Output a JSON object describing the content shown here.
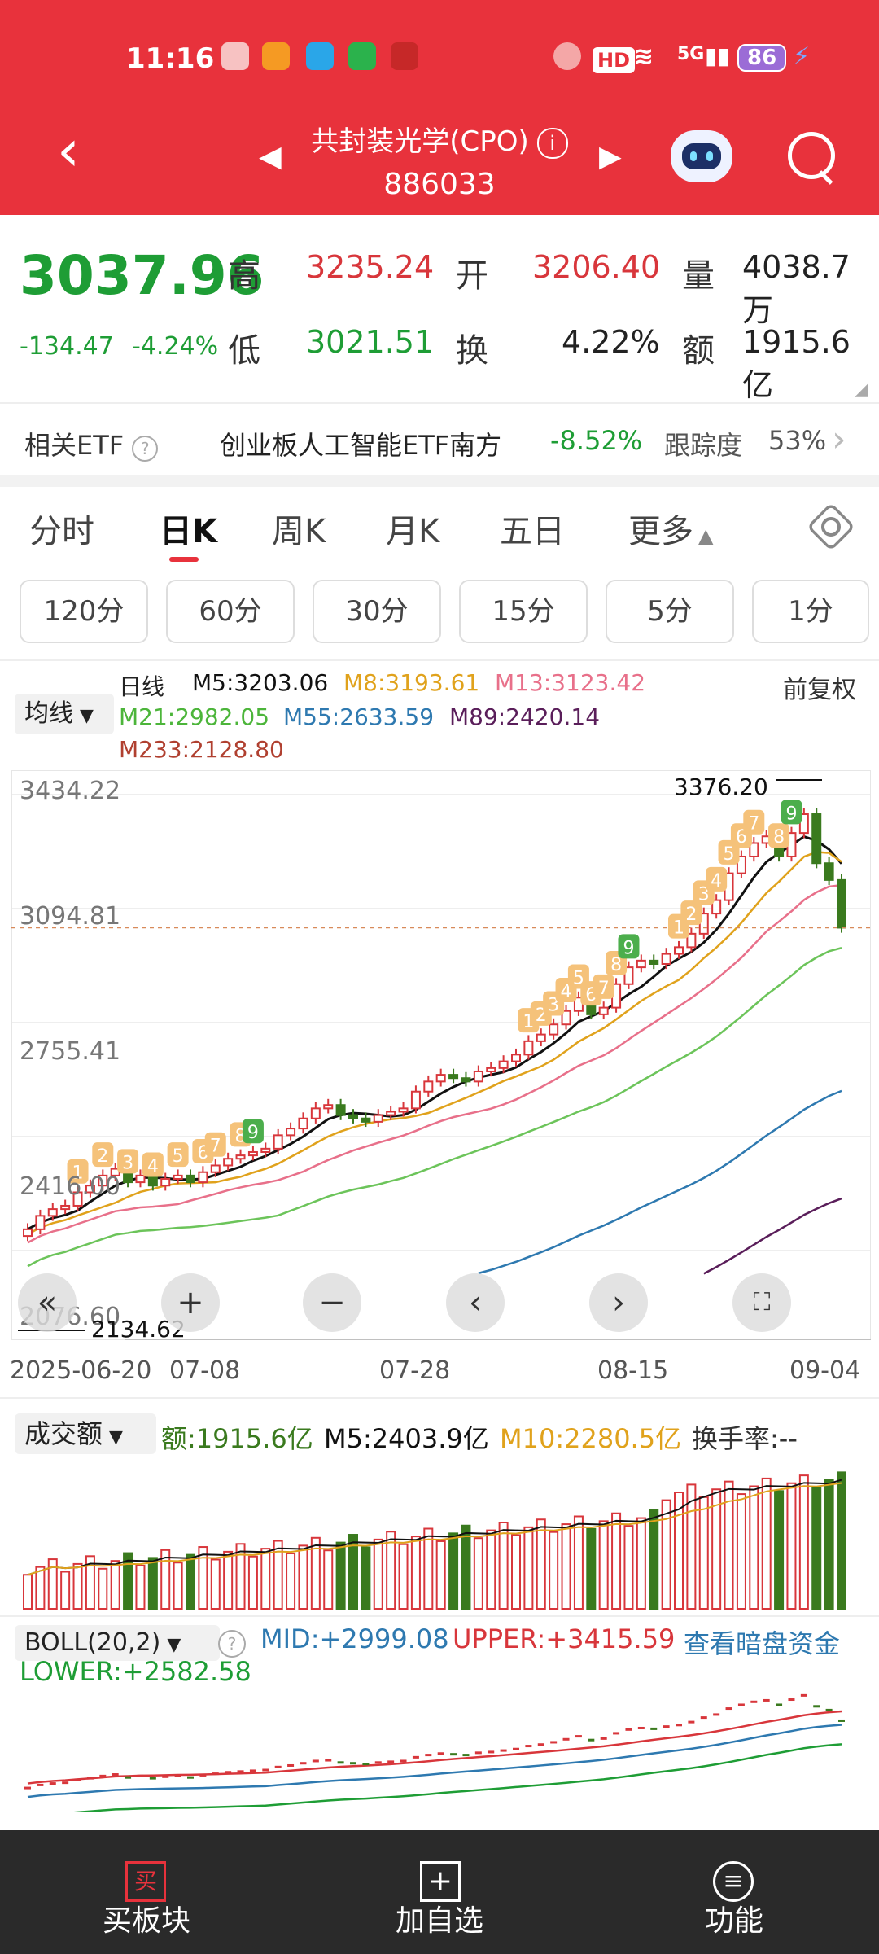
{
  "status_bar": {
    "time": "11:16",
    "hd": "HD",
    "signal": "5G",
    "battery": "86"
  },
  "header": {
    "title": "共封装光学(CPO)",
    "code": "886033"
  },
  "quote": {
    "price": "3037.96",
    "change": "-134.47",
    "change_pct": "-4.24%",
    "high_label": "高",
    "high": "3235.24",
    "low_label": "低",
    "low": "3021.51",
    "open_label": "开",
    "open": "3206.40",
    "turnover_label": "换",
    "turnover": "4.22%",
    "volume_label": "量",
    "volume": "4038.7万",
    "amount_label": "额",
    "amount": "1915.6亿"
  },
  "etf": {
    "label": "相关ETF",
    "name": "创业板人工智能ETF南方",
    "change": "-8.52%",
    "tracking_label": "跟踪度",
    "tracking": "53%"
  },
  "period_tabs": [
    "分时",
    "日K",
    "周K",
    "月K",
    "五日",
    "更多"
  ],
  "minute_tabs": [
    "120分",
    "60分",
    "30分",
    "15分",
    "5分",
    "1分"
  ],
  "ma_legend": {
    "selector": "均线",
    "kline_label": "日线",
    "m5": "M5:3203.06",
    "m8": "M8:3193.61",
    "m13": "M13:3123.42",
    "m21": "M21:2982.05",
    "m55": "M55:2633.59",
    "m89": "M89:2420.14",
    "m233": "M233:2128.80",
    "adjust": "前复权"
  },
  "colors": {
    "up": "#d8363b",
    "down": "#3a7a1e",
    "m5": "#111111",
    "m8": "#e0a21c",
    "m13": "#e8708a",
    "m21": "#6cc45a",
    "m55": "#2e79b0",
    "m89": "#5a1e5a",
    "m233": "#b04030"
  },
  "chart_data": {
    "type": "candlestick",
    "title": "",
    "y_ticks": [
      "3434.22",
      "3094.81",
      "2755.41",
      "2416.00",
      "2076.60"
    ],
    "x_ticks": [
      "2025-06-20",
      "07-08",
      "07-28",
      "08-15",
      "09-04"
    ],
    "ylim": [
      2076.6,
      3434.22
    ],
    "max_label": "3376.20",
    "min_label": "2134.62",
    "last_close": 3037.96,
    "closes": [
      2140,
      2180,
      2200,
      2210,
      2250,
      2270,
      2300,
      2320,
      2280,
      2300,
      2270,
      2290,
      2300,
      2280,
      2310,
      2330,
      2350,
      2360,
      2370,
      2380,
      2420,
      2440,
      2470,
      2500,
      2510,
      2480,
      2470,
      2460,
      2480,
      2490,
      2500,
      2550,
      2580,
      2600,
      2590,
      2580,
      2610,
      2620,
      2640,
      2660,
      2700,
      2720,
      2750,
      2790,
      2830,
      2780,
      2800,
      2870,
      2920,
      2940,
      2930,
      2960,
      2980,
      3020,
      3080,
      3120,
      3200,
      3250,
      3290,
      3310,
      3250,
      3320,
      3376,
      3230,
      3180,
      3037.96
    ],
    "demark_up": [
      "1",
      "2",
      "3",
      "4",
      "5",
      "6",
      "7",
      "8",
      "9"
    ],
    "volume": {
      "selector": "成交额",
      "amount": "额:1915.6亿",
      "m5": "M5:2403.9亿",
      "m10": "M10:2280.5亿",
      "turnover": "换手率:--"
    },
    "boll": {
      "label": "BOLL(20,2)",
      "mid": "MID:+2999.08",
      "upper": "UPPER:+3415.59",
      "lower": "LOWER:+2582.58",
      "link": "查看暗盘资金"
    }
  },
  "bottom_nav": [
    "买板块",
    "加自选",
    "功能"
  ]
}
